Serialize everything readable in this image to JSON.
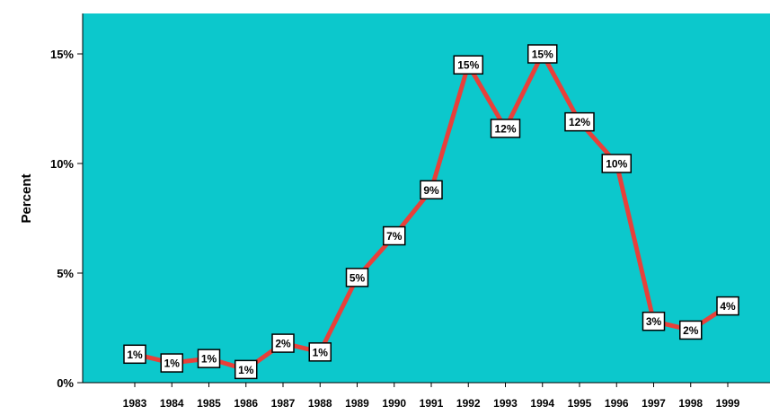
{
  "chart_data": {
    "type": "line",
    "title": "",
    "xlabel": "",
    "ylabel": "Percent",
    "categories": [
      "1983",
      "1984",
      "1985",
      "1986",
      "1987",
      "1988",
      "1989",
      "1990",
      "1991",
      "1992",
      "1993",
      "1994",
      "1995",
      "1996",
      "1997",
      "1998",
      "1999"
    ],
    "values": [
      1.3,
      0.9,
      1.1,
      0.6,
      1.8,
      1.4,
      4.8,
      6.7,
      8.8,
      14.5,
      11.6,
      15.0,
      11.9,
      10.0,
      2.8,
      2.4,
      3.5
    ],
    "data_labels": [
      "1%",
      "1%",
      "1%",
      "1%",
      "2%",
      "1%",
      "5%",
      "7%",
      "9%",
      "15%",
      "12%",
      "15%",
      "12%",
      "10%",
      "3%",
      "2%",
      "4%"
    ],
    "y_ticks": [
      {
        "value": 0,
        "label": "0%"
      },
      {
        "value": 5,
        "label": "5%"
      },
      {
        "value": 10,
        "label": "10%"
      },
      {
        "value": 15,
        "label": "15%"
      }
    ],
    "ylim": [
      0,
      17
    ],
    "grid": false,
    "legend": "none",
    "colors": {
      "plot_background": "#0cc8cc",
      "line": "#e8403a",
      "label_box": "#ffffff",
      "axis": "#000000"
    }
  }
}
